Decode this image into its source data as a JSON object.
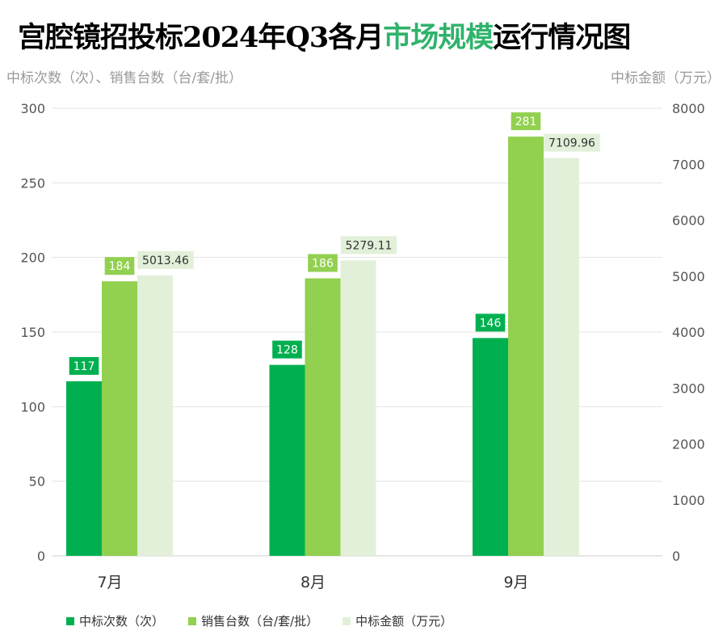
{
  "title": {
    "prefix": "宫腔镜招投标2024年Q3各月",
    "highlight": "市场规模",
    "suffix": "运行情况图"
  },
  "chart_data": {
    "type": "bar",
    "categories": [
      "7月",
      "8月",
      "9月"
    ],
    "series": [
      {
        "name": "中标次数（次）",
        "axis": "left",
        "color": "#00b050",
        "values": [
          117,
          128,
          146
        ],
        "labels": [
          "117",
          "128",
          "146"
        ]
      },
      {
        "name": "销售台数（台/套/批）",
        "axis": "left",
        "color": "#92d050",
        "values": [
          184,
          186,
          281
        ],
        "labels": [
          "184",
          "186",
          "281"
        ]
      },
      {
        "name": "中标金额（万元）",
        "axis": "right",
        "color": "#e2f0d9",
        "values": [
          5013.46,
          5279.11,
          7109.96
        ],
        "labels": [
          "5013.46",
          "5279.11",
          "7109.96"
        ]
      }
    ],
    "ylabel_left": "中标次数（次）、销售台数（台/套/批）",
    "ylabel_right": "中标金额（万元）",
    "ylim_left": [
      0,
      300
    ],
    "yticks_left": [
      "0",
      "50",
      "100",
      "150",
      "200",
      "250",
      "300"
    ],
    "ylim_right": [
      0,
      8000
    ],
    "yticks_right": [
      "0",
      "1000",
      "2000",
      "3000",
      "4000",
      "5000",
      "6000",
      "7000",
      "8000"
    ],
    "grid": true,
    "legend": "bottom"
  }
}
